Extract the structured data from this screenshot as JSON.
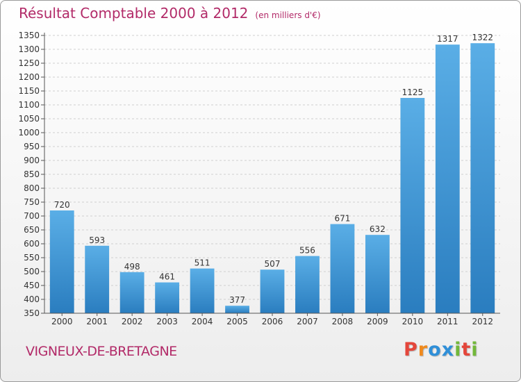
{
  "title": "Résultat Comptable 2000 à 2012",
  "subtitle": "(en milliers d'€)",
  "commune": "VIGNEUX-DE-BRETAGNE",
  "logo": {
    "letters": [
      "P",
      "r",
      "o",
      "x",
      "i",
      "t",
      "i"
    ],
    "colors": [
      "#e4463b",
      "#f08a1d",
      "#2f8fd8",
      "#2f8fd8",
      "#72b83a",
      "#e4463b",
      "#72b83a"
    ]
  },
  "colors": {
    "bar_top": "#5aaee6",
    "bar_bottom": "#2a7dbf",
    "title": "#b22a68"
  },
  "chart_data": {
    "type": "bar",
    "categories": [
      "2000",
      "2001",
      "2002",
      "2003",
      "2004",
      "2005",
      "2006",
      "2007",
      "2008",
      "2009",
      "2010",
      "2011",
      "2012"
    ],
    "values": [
      720,
      593,
      498,
      461,
      511,
      377,
      507,
      556,
      671,
      632,
      1125,
      1317,
      1322
    ],
    "data_labels": [
      "720",
      "593",
      "498",
      "461",
      "511",
      "377",
      "507",
      "556",
      "671",
      "632",
      "1125",
      "1317",
      "1322"
    ],
    "yticks": [
      "350",
      "400",
      "450",
      "500",
      "550",
      "600",
      "650",
      "700",
      "750",
      "800",
      "850",
      "900",
      "950",
      "1000",
      "1050",
      "1100",
      "1150",
      "1200",
      "1250",
      "1300",
      "1350"
    ],
    "ylim": [
      350,
      1350
    ],
    "grid": true
  }
}
